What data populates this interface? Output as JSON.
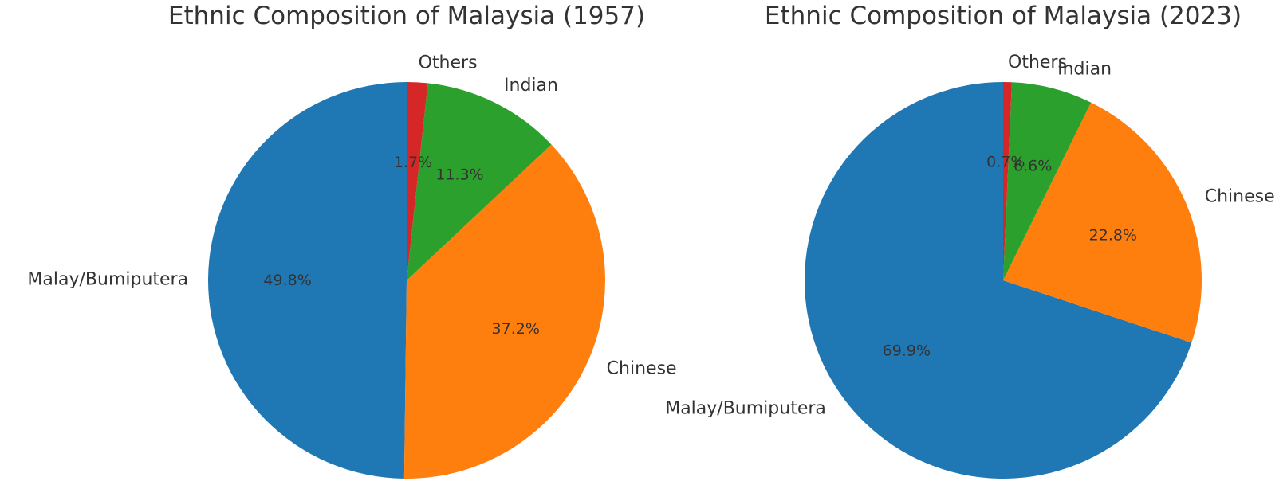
{
  "chart_data": [
    {
      "type": "pie",
      "title": "Ethnic Composition of Malaysia (1957)",
      "categories": [
        "Malay/Bumiputera",
        "Chinese",
        "Indian",
        "Others"
      ],
      "values": [
        49.8,
        37.2,
        11.3,
        1.7
      ],
      "value_labels": [
        "49.8%",
        "37.2%",
        "11.3%",
        "1.7%"
      ],
      "colors": [
        "#1f77b4",
        "#ff7f0e",
        "#2ca02c",
        "#d62728"
      ],
      "start_angle": "top (90°)",
      "direction": "counterclockwise",
      "legend": "none (labels beside slices)"
    },
    {
      "type": "pie",
      "title": "Ethnic Composition of Malaysia (2023)",
      "categories": [
        "Malay/Bumiputera",
        "Chinese",
        "Indian",
        "Others"
      ],
      "values": [
        69.9,
        22.8,
        6.6,
        0.7
      ],
      "value_labels": [
        "69.9%",
        "22.8%",
        "6.6%",
        "0.7%"
      ],
      "colors": [
        "#1f77b4",
        "#ff7f0e",
        "#2ca02c",
        "#d62728"
      ],
      "start_angle": "top (90°)",
      "direction": "counterclockwise",
      "legend": "none (labels beside slices)"
    }
  ]
}
